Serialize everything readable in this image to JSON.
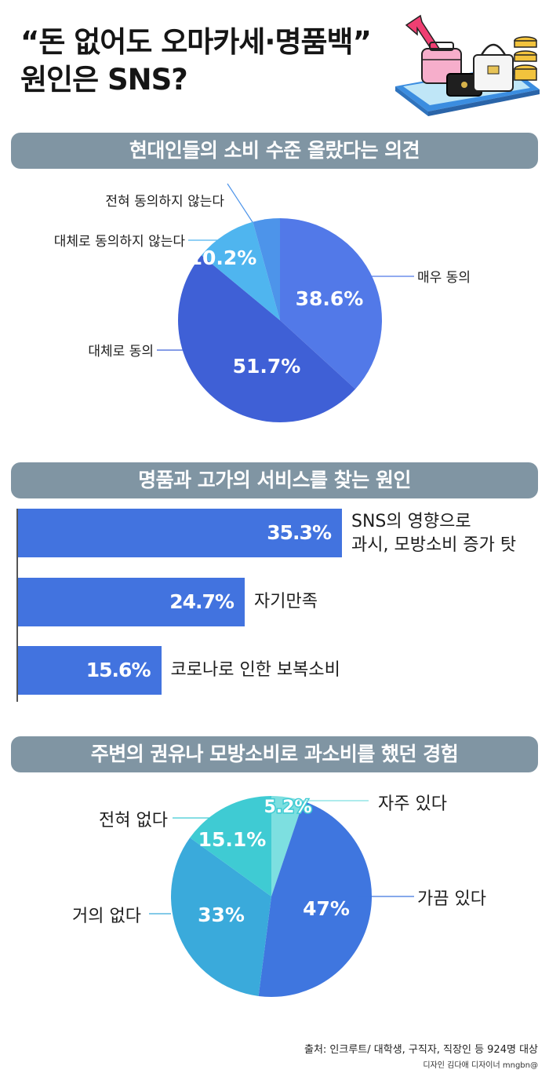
{
  "title": {
    "line1": "“돈 없어도 오마카세·명품백”",
    "line2": "원인은 SNS?"
  },
  "section1": {
    "header": "현대인들의 소비 수준 올랐다는 의견",
    "chart_data": {
      "type": "pie",
      "title": "현대인들의 소비 수준 올랐다는 의견",
      "slices": [
        {
          "label": "매우 동의",
          "value": 38.6,
          "display": "38.6%",
          "color": "#5279e8"
        },
        {
          "label": "대체로 동의",
          "value": 51.7,
          "display": "51.7%",
          "color": "#3f60d6"
        },
        {
          "label": "대체로 동의하지 않는다",
          "value": 10.2,
          "display": "10.2%",
          "color": "#4fb5ef"
        },
        {
          "label": "전혀 동의하지 않는다",
          "value": 4.5,
          "display": "",
          "color": "#4d94ea"
        }
      ]
    }
  },
  "section2": {
    "header": "명품과 고가의 서비스를 찾는 원인",
    "chart_data": {
      "type": "bar",
      "orientation": "horizontal",
      "title": "명품과 고가의 서비스를 찾는 원인",
      "bars": [
        {
          "label_line1": "SNS의 영향으로",
          "label_line2": "과시, 모방소비 증가 탓",
          "value": 35.3,
          "display": "35.3%"
        },
        {
          "label_line1": "자기만족",
          "label_line2": "",
          "value": 24.7,
          "display": "24.7%"
        },
        {
          "label_line1": "코로나로 인한 보복소비",
          "label_line2": "",
          "value": 15.6,
          "display": "15.6%"
        }
      ],
      "color": "#4273df"
    }
  },
  "section3": {
    "header": "주변의 권유나 모방소비로 과소비를 했던 경험",
    "chart_data": {
      "type": "pie",
      "title": "주변의 권유나 모방소비로 과소비를 했던 경험",
      "slices": [
        {
          "label": "자주 있다",
          "value": 5.2,
          "display": "5.2%",
          "color": "#7ddfe0"
        },
        {
          "label": "가끔 있다",
          "value": 47,
          "display": "47%",
          "color": "#3f76df"
        },
        {
          "label": "거의 없다",
          "value": 33,
          "display": "33%",
          "color": "#3aaadb"
        },
        {
          "label": "전혀 없다",
          "value": 15.1,
          "display": "15.1%",
          "color": "#3fcbd3"
        }
      ]
    }
  },
  "footer": {
    "source": "출처: 인크루트/ 대학생, 구직자, 직장인 등 924명 대상",
    "credit": "디자인 김다애 디자이너 mngbn@"
  }
}
